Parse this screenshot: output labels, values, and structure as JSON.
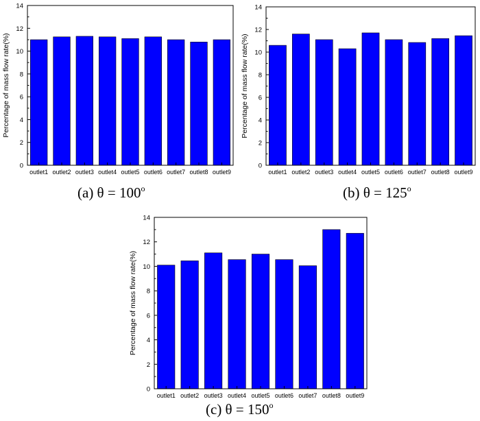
{
  "colors": {
    "bar": "#0000ff",
    "bar_stroke": "#000000",
    "axis": "#000000"
  },
  "chart_data": [
    {
      "type": "bar",
      "categories": [
        "outlet1",
        "outlet2",
        "outlet3",
        "outlet4",
        "outlet5",
        "outlet6",
        "outlet7",
        "outlet8",
        "outlet9"
      ],
      "values": [
        11.0,
        11.25,
        11.3,
        11.25,
        11.1,
        11.25,
        11.0,
        10.8,
        11.0
      ],
      "xlabel": "",
      "ylabel": "Percentage of mass flow rate(%)",
      "ylim": [
        0,
        14
      ],
      "yticks": [
        0,
        2,
        4,
        6,
        8,
        10,
        12,
        14
      ],
      "grid": false,
      "caption": {
        "prefix": "(a) θ = 100",
        "sup": "o"
      }
    },
    {
      "type": "bar",
      "categories": [
        "outlet1",
        "outlet2",
        "outlet3",
        "outlet4",
        "outlet5",
        "outlet6",
        "outlet7",
        "outlet8",
        "outlet9"
      ],
      "values": [
        10.6,
        11.6,
        11.1,
        10.3,
        11.7,
        11.1,
        10.85,
        11.2,
        11.45
      ],
      "xlabel": "",
      "ylabel": "Percentage of mass flow rate(%)",
      "ylim": [
        0,
        14
      ],
      "yticks": [
        0,
        2,
        4,
        6,
        8,
        10,
        12,
        14
      ],
      "grid": false,
      "caption": {
        "prefix": "(b) θ = 125",
        "sup": "o"
      }
    },
    {
      "type": "bar",
      "categories": [
        "outlet1",
        "outlet2",
        "outlet3",
        "outlet4",
        "outlet5",
        "outlet6",
        "outlet7",
        "outlet8",
        "outlet9"
      ],
      "values": [
        10.1,
        10.45,
        11.1,
        10.55,
        11.0,
        10.55,
        10.05,
        13.0,
        12.7
      ],
      "xlabel": "",
      "ylabel": "Percentage of mass flow rate(%)",
      "ylim": [
        0,
        14
      ],
      "yticks": [
        0,
        2,
        4,
        6,
        8,
        10,
        12,
        14
      ],
      "grid": false,
      "caption": {
        "prefix": "(c) θ = 150",
        "sup": "o"
      }
    }
  ]
}
